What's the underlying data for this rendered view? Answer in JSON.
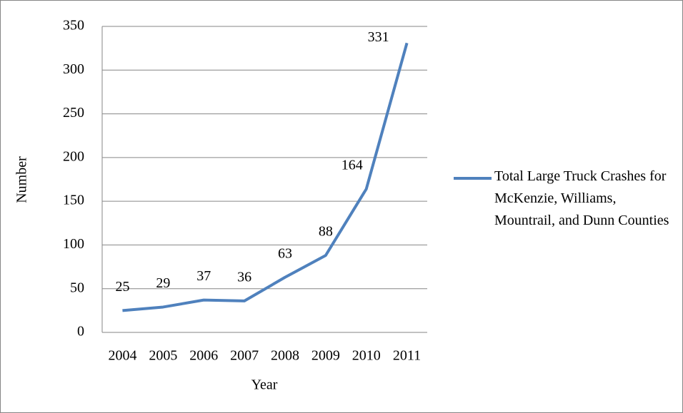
{
  "chart_data": {
    "type": "line",
    "x_label": "Year",
    "y_label": "Number",
    "categories": [
      "2004",
      "2005",
      "2006",
      "2007",
      "2008",
      "2009",
      "2010",
      "2011"
    ],
    "series": [
      {
        "name": "Total Large Truck Crashes for McKenzie, Williams, Mountrail, and Dunn Counties",
        "color": "#4f81bd",
        "values": [
          25,
          29,
          37,
          36,
          63,
          88,
          164,
          331
        ]
      }
    ],
    "ylim": [
      0,
      350
    ],
    "yticks": [
      0,
      50,
      100,
      150,
      200,
      250,
      300,
      350
    ],
    "grid": true,
    "data_labels": true,
    "legend": "right"
  }
}
